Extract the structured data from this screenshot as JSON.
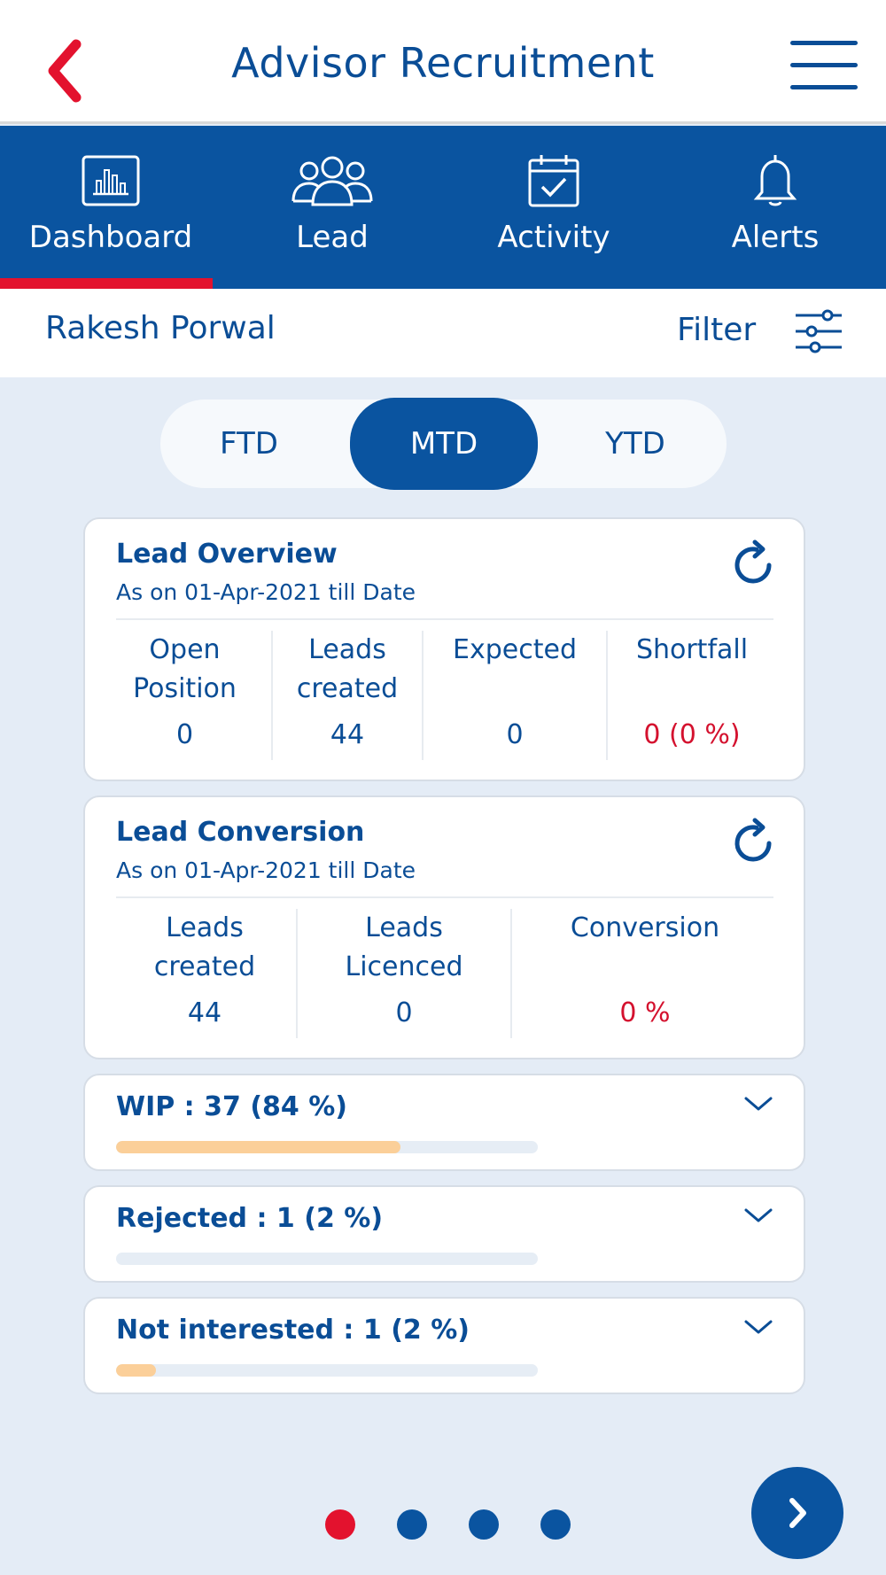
{
  "header": {
    "title": "Advisor Recruitment"
  },
  "tabs": [
    {
      "label": "Dashboard",
      "icon": "bar-chart-icon",
      "active": true
    },
    {
      "label": "Lead",
      "icon": "people-icon",
      "active": false
    },
    {
      "label": "Activity",
      "icon": "calendar-check-icon",
      "active": false
    },
    {
      "label": "Alerts",
      "icon": "bell-icon",
      "active": false
    }
  ],
  "user": {
    "name": "Rakesh Porwal",
    "filter_label": "Filter"
  },
  "period": {
    "options": [
      "FTD",
      "MTD",
      "YTD"
    ],
    "selected": "MTD"
  },
  "lead_overview": {
    "title": "Lead Overview",
    "subtitle": "As on 01-Apr-2021 till Date",
    "stats": [
      {
        "label_line1": "Open",
        "label_line2": "Position",
        "value": "0"
      },
      {
        "label_line1": "Leads",
        "label_line2": "created",
        "value": "44"
      },
      {
        "label_line1": "Expected",
        "label_line2": "",
        "value": "0"
      },
      {
        "label_line1": "Shortfall",
        "label_line2": "",
        "value": "0 (0 %)"
      }
    ]
  },
  "lead_conversion": {
    "title": "Lead Conversion",
    "subtitle": "As on 01-Apr-2021 till Date",
    "stats": [
      {
        "label_line1": "Leads",
        "label_line2": "created",
        "value": "44"
      },
      {
        "label_line1": "Leads",
        "label_line2": "Licenced",
        "value": "0"
      },
      {
        "label_line1": "Conversion",
        "label_line2": "",
        "value": "0 %"
      }
    ]
  },
  "status_cards": [
    {
      "title": "WIP : 37 (84 %)",
      "progress": 0.675
    },
    {
      "title": "Rejected : 1 (2 %)",
      "progress": 0
    },
    {
      "title": "Not interested : 1 (2 %)",
      "progress": 0.095
    }
  ],
  "pager": {
    "count": 4,
    "active_index": 0
  },
  "colors": {
    "primary": "#0a54a0",
    "accent": "#e3122e",
    "progress": "#fbcf99",
    "background": "#e4ecf6"
  }
}
